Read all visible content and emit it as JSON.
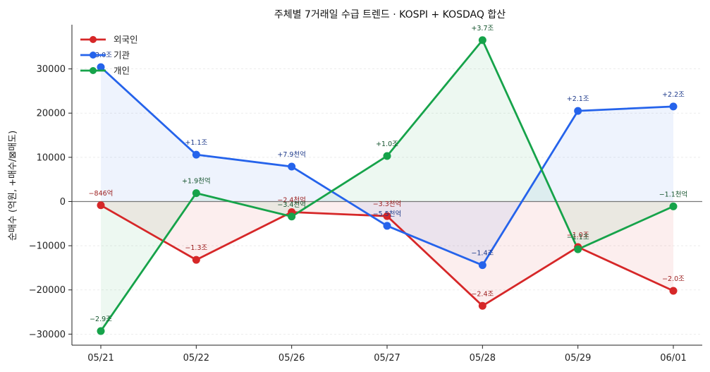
{
  "chart_data": {
    "type": "line",
    "title": "주체별 7거래일 수급 트렌드 · KOSPI + KOSDAQ 합산",
    "xlabel": "",
    "ylabel": "순매수 (억원, +매수/⊠매도)",
    "categories": [
      "05/21",
      "05/22",
      "05/26",
      "05/27",
      "05/28",
      "05/29",
      "06/01"
    ],
    "ylim": [
      -32500,
      40000
    ],
    "yticks": [
      -30000,
      -20000,
      -10000,
      0,
      10000,
      20000,
      30000
    ],
    "ytick_labels": [
      "−30000",
      "−20000",
      "−10000",
      "0",
      "10000",
      "20000",
      "30000"
    ],
    "grid": "horizontal-dashed",
    "legend_position": "top-left",
    "series": [
      {
        "name": "외국인",
        "color": "#d62728",
        "values": [
          -846,
          -13200,
          -2400,
          -3300,
          -23600,
          -10300,
          -20200
        ],
        "labels": [
          "−846억",
          "−1.3조",
          "−2.4천억",
          "−3.3천억",
          "−2.4조",
          "−1.0조",
          "−2.0조"
        ]
      },
      {
        "name": "기관",
        "color": "#2563eb",
        "values": [
          30400,
          10600,
          7900,
          -5500,
          -14400,
          20500,
          21500
        ],
        "labels": [
          "+3.0조",
          "+1.1조",
          "+7.9천억",
          "−5.5천억",
          "−1.4조",
          "+2.1조",
          "+2.2조"
        ]
      },
      {
        "name": "개인",
        "color": "#16a34a",
        "values": [
          -29300,
          1900,
          -3400,
          10300,
          36500,
          -10800,
          -1100
        ],
        "labels": [
          "−2.9조",
          "+1.9천억",
          "−3.4천억",
          "+1.0조",
          "+3.7조",
          "−1.1조",
          "−1.1천억"
        ]
      }
    ]
  }
}
